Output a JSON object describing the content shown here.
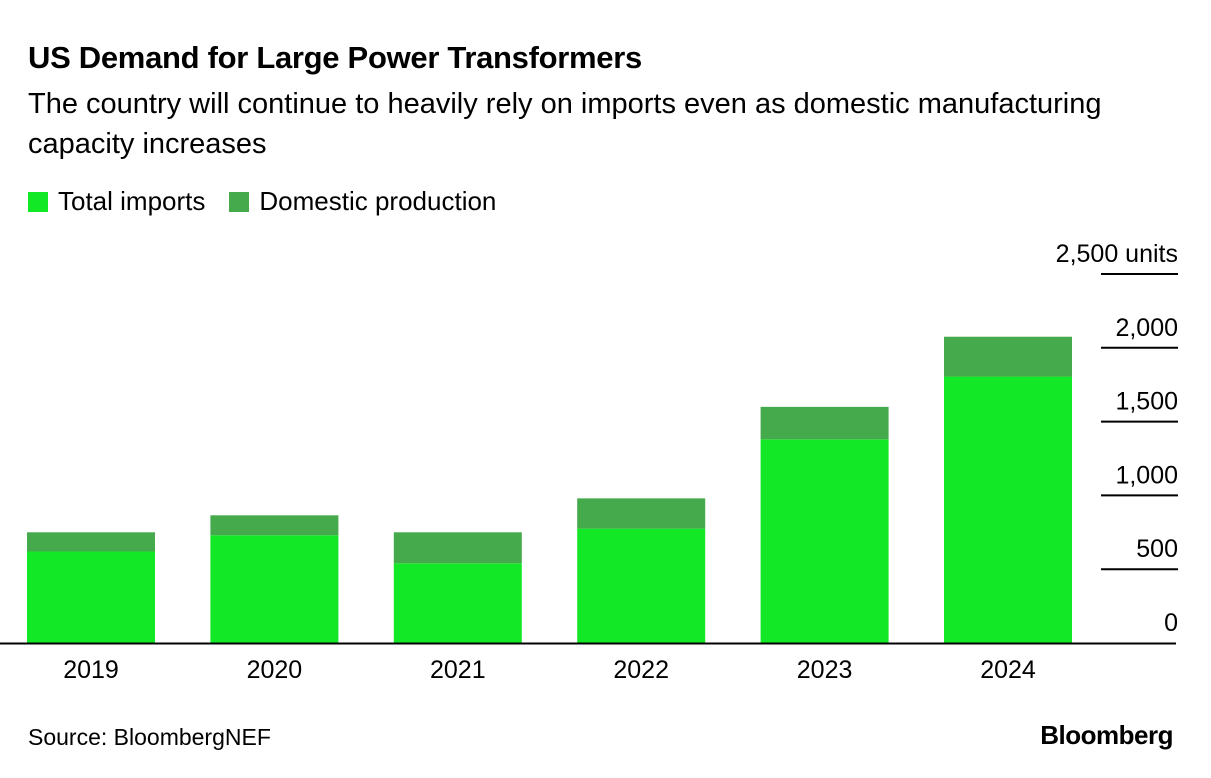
{
  "chart_data": {
    "type": "bar",
    "stacked": true,
    "title": "US Demand for Large Power Transformers",
    "subtitle": "The country will continue to heavily rely on imports even as domestic manufacturing capacity increases",
    "categories": [
      "2019",
      "2020",
      "2021",
      "2022",
      "2023",
      "2024"
    ],
    "series": [
      {
        "name": "Total imports",
        "color": "#13e826",
        "values": [
          620,
          730,
          540,
          775,
          1380,
          1805
        ]
      },
      {
        "name": "Domestic production",
        "color": "#44aa4b",
        "values": [
          130,
          135,
          210,
          205,
          220,
          270
        ]
      }
    ],
    "ylim": [
      0,
      2500
    ],
    "yticks": [
      0,
      500,
      1000,
      1500,
      2000,
      2500
    ],
    "ytick_labels": [
      "0",
      "500",
      "1,000",
      "1,500",
      "2,000",
      "2,500 units"
    ],
    "axis_side": "right",
    "legend_position": "top-left",
    "grid": true
  },
  "footer": {
    "source": "Source: BloombergNEF",
    "logo": "Bloomberg"
  }
}
